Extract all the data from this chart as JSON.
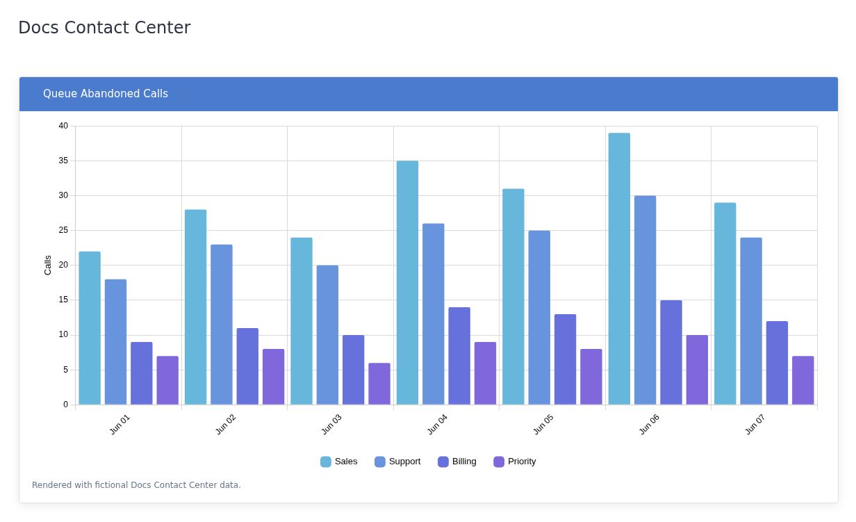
{
  "chart_data": {
    "type": "bar",
    "title": "Docs Contact Center",
    "subtitle": "Queue Abandoned Calls",
    "ylabel": "Calls",
    "categories": [
      "Jun 01",
      "Jun 02",
      "Jun 03",
      "Jun 04",
      "Jun 05",
      "Jun 06",
      "Jun 07"
    ],
    "series": [
      {
        "name": "Sales",
        "color": "#67b7dc",
        "values": [
          22,
          28,
          24,
          35,
          31,
          39,
          29
        ]
      },
      {
        "name": "Support",
        "color": "#6794dc",
        "values": [
          18,
          23,
          20,
          26,
          25,
          30,
          24
        ]
      },
      {
        "name": "Billing",
        "color": "#6771dc",
        "values": [
          9,
          11,
          10,
          14,
          13,
          15,
          12
        ]
      },
      {
        "name": "Priority",
        "color": "#8067dc",
        "values": [
          7,
          8,
          6,
          9,
          8,
          10,
          7
        ]
      }
    ],
    "ylim": [
      0,
      40
    ],
    "yticks": [
      0,
      5,
      10,
      15,
      20,
      25,
      30,
      35,
      40
    ],
    "grid": true,
    "legend": "bottom",
    "annotations": [
      "Rendered with fictional Docs Contact Center data."
    ]
  }
}
